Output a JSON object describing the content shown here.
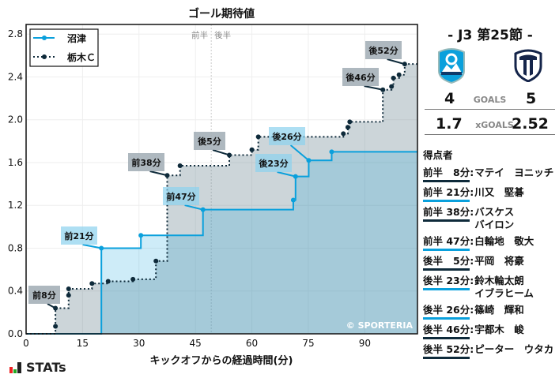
{
  "header": {
    "title": "ゴール期待値",
    "match": "-  J3 第25節  -"
  },
  "teams": {
    "home": {
      "name": "沼津",
      "goals": "4",
      "xgoals": "1.7",
      "color": "#0aa0dc"
    },
    "away": {
      "name": "栃木Ｃ",
      "goals": "5",
      "xgoals": "2.52",
      "color": "#0e2a3a"
    }
  },
  "summary": {
    "goals_label": "GOALS",
    "xgoals_label": "xGOALS"
  },
  "scorers": {
    "title": "得点者",
    "items": [
      {
        "time": "前半   8分",
        "name": "マテイ　ヨニッチ",
        "team": "away"
      },
      {
        "time": "前半 21分",
        "name": "川又　堅碁",
        "team": "home"
      },
      {
        "time": "前半 38分",
        "name": "バスケス\nバイロン",
        "team": "away"
      },
      {
        "time": "前半 47分",
        "name": "白輪地　敬大",
        "team": "home"
      },
      {
        "time": "後半   5分",
        "name": "平岡　将豪",
        "team": "away"
      },
      {
        "time": "後半 23分",
        "name": "鈴木輪太朗\nイブラヒーム",
        "team": "home"
      },
      {
        "time": "後半 26分",
        "name": "篠崎　輝和",
        "team": "home"
      },
      {
        "time": "後半 46分",
        "name": "宇都木　峻",
        "team": "away"
      },
      {
        "time": "後半 52分",
        "name": "ピーター　ウタカ",
        "team": "away"
      }
    ]
  },
  "footer": {
    "brand": "STATs",
    "copyright": "© SPORTERIA"
  },
  "chart_data": {
    "type": "line",
    "title": "ゴール期待値",
    "xlabel": "キックオフからの経過時間(分)",
    "ylabel": "",
    "xlim": [
      0,
      104
    ],
    "ylim": [
      0,
      2.89
    ],
    "xticks": [
      0,
      15,
      30,
      45,
      60,
      75,
      90
    ],
    "yticks": [
      0.0,
      0.4,
      0.8,
      1.2,
      1.6,
      2.0,
      2.4,
      2.8
    ],
    "grid": true,
    "legend": "top-left",
    "half_marker": {
      "x": 49.2,
      "labels": [
        "前半",
        "後半"
      ]
    },
    "series": [
      {
        "name": "沼津",
        "color": "#0aa0dc",
        "style": "solid-step",
        "points": [
          [
            20,
            0.8
          ],
          [
            30.5,
            0.92
          ],
          [
            47,
            1.16
          ],
          [
            71,
            1.25
          ],
          [
            71.6,
            1.47
          ],
          [
            75.1,
            1.62
          ],
          [
            81.2,
            1.7
          ]
        ]
      },
      {
        "name": "栃木Ｃ",
        "color": "#0e2a3a",
        "style": "dotted-step",
        "points": [
          [
            7.8,
            0.07
          ],
          [
            7.8,
            0.24
          ],
          [
            11.3,
            0.36
          ],
          [
            11.3,
            0.42
          ],
          [
            17.5,
            0.47
          ],
          [
            21.8,
            0.49
          ],
          [
            28.4,
            0.51
          ],
          [
            34.5,
            0.68
          ],
          [
            37.5,
            1.48
          ],
          [
            40.9,
            1.57
          ],
          [
            54,
            1.67
          ],
          [
            60,
            1.72
          ],
          [
            61.7,
            1.84
          ],
          [
            84.3,
            1.87
          ],
          [
            85.5,
            1.93
          ],
          [
            86,
            1.98
          ],
          [
            94.8,
            2.28
          ],
          [
            97.1,
            2.31
          ],
          [
            97.6,
            2.39
          ],
          [
            99.1,
            2.42
          ],
          [
            100.6,
            2.52
          ]
        ]
      }
    ],
    "annotations": [
      {
        "text": "前8分",
        "series": 1,
        "x": 7.8,
        "y": 0.24
      },
      {
        "text": "前21分",
        "series": 0,
        "x": 20,
        "y": 0.8
      },
      {
        "text": "前38分",
        "series": 1,
        "x": 37.5,
        "y": 1.48
      },
      {
        "text": "前47分",
        "series": 0,
        "x": 47,
        "y": 1.16
      },
      {
        "text": "後5分",
        "series": 1,
        "x": 54,
        "y": 1.67
      },
      {
        "text": "後23分",
        "series": 0,
        "x": 71.6,
        "y": 1.47
      },
      {
        "text": "後26分",
        "series": 0,
        "x": 75.1,
        "y": 1.62
      },
      {
        "text": "後46分",
        "series": 1,
        "x": 94.8,
        "y": 2.28
      },
      {
        "text": "後52分",
        "series": 1,
        "x": 100.6,
        "y": 2.52
      }
    ]
  }
}
